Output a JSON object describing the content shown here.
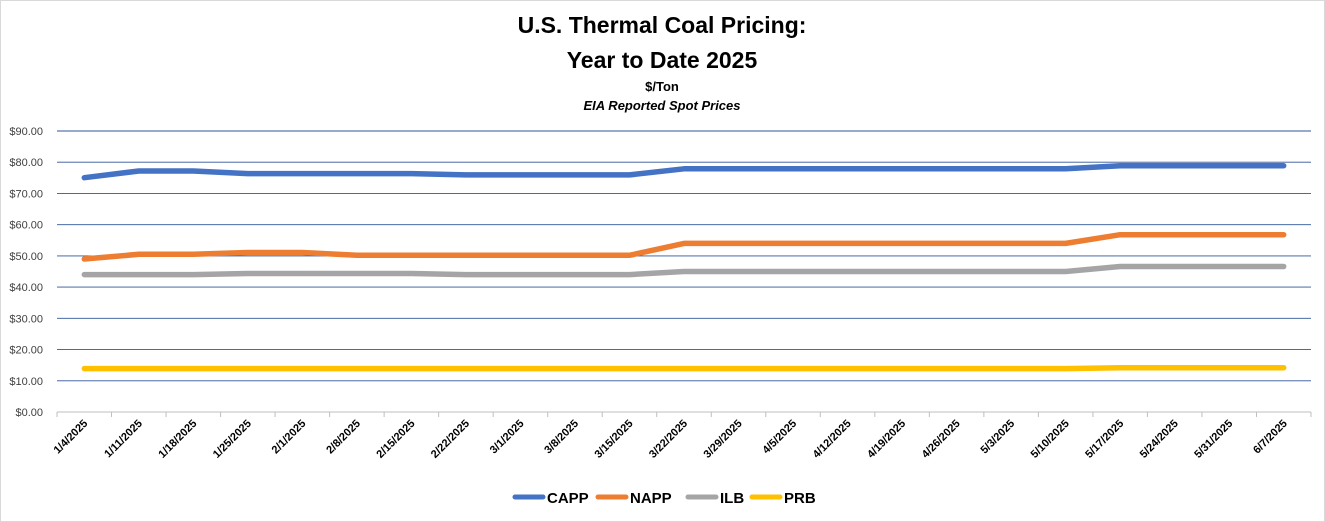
{
  "chart_data": {
    "type": "line",
    "title_line1": "U.S. Thermal Coal Pricing:",
    "title_line2": "Year to Date 2025",
    "subtitle": "$/Ton",
    "subtitle2": "EIA Reported Spot Prices",
    "xlabel": "",
    "ylabel": "",
    "ylim": [
      0,
      90
    ],
    "y_ticks": [
      0,
      10,
      20,
      30,
      40,
      50,
      60,
      70,
      80,
      90
    ],
    "y_tick_labels": [
      "$0.00",
      "$10.00",
      "$20.00",
      "$30.00",
      "$40.00",
      "$50.00",
      "$60.00",
      "$70.00",
      "$80.00",
      "$90.00"
    ],
    "grid": true,
    "legend_position": "bottom",
    "categories": [
      "1/4/2025",
      "1/11/2025",
      "1/18/2025",
      "1/25/2025",
      "2/1/2025",
      "2/8/2025",
      "2/15/2025",
      "2/22/2025",
      "3/1/2025",
      "3/8/2025",
      "3/15/2025",
      "3/22/2025",
      "3/29/2025",
      "4/5/2025",
      "4/12/2025",
      "4/19/2025",
      "4/26/2025",
      "5/3/2025",
      "5/10/2025",
      "5/17/2025",
      "5/24/2025",
      "5/31/2025",
      "6/7/2025"
    ],
    "series": [
      {
        "name": "CAPP",
        "color": "#4472c4",
        "values": [
          75.05,
          77.2,
          77.2,
          76.35,
          76.35,
          76.35,
          76.35,
          75.95,
          75.95,
          75.95,
          75.95,
          77.9,
          77.9,
          77.9,
          77.9,
          77.9,
          77.9,
          77.9,
          77.9,
          78.9,
          78.9,
          78.9,
          78.9
        ]
      },
      {
        "name": "NAPP",
        "color": "#ed7d31",
        "values": [
          49.0,
          50.5,
          50.5,
          51.1,
          51.1,
          50.2,
          50.2,
          50.2,
          50.2,
          50.2,
          50.2,
          54.0,
          54.0,
          54.0,
          54.0,
          54.0,
          54.0,
          54.0,
          54.0,
          56.8,
          56.8,
          56.8,
          56.8
        ]
      },
      {
        "name": "ILB",
        "color": "#a5a5a5",
        "values": [
          44.0,
          44.0,
          44.0,
          44.35,
          44.35,
          44.35,
          44.35,
          44.0,
          44.0,
          44.0,
          44.0,
          45.0,
          45.0,
          45.0,
          45.0,
          45.0,
          45.0,
          45.0,
          45.0,
          46.6,
          46.6,
          46.6,
          46.6
        ]
      },
      {
        "name": "PRB",
        "color": "#ffc000",
        "values": [
          13.9,
          13.9,
          13.9,
          13.9,
          13.9,
          13.9,
          13.9,
          13.9,
          13.9,
          13.9,
          13.9,
          13.9,
          13.9,
          13.9,
          13.9,
          13.9,
          13.9,
          13.9,
          13.9,
          14.2,
          14.2,
          14.2,
          14.2
        ]
      }
    ]
  }
}
